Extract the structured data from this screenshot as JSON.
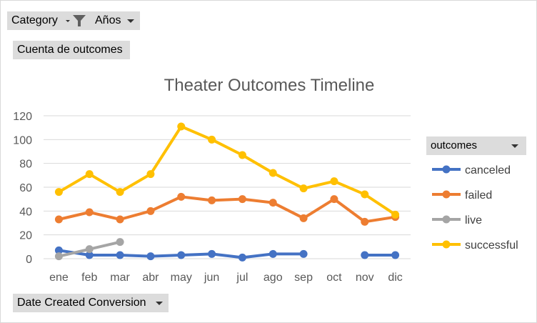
{
  "filters": {
    "category_label": "Category",
    "years_label": "Años",
    "values_label": "Cuenta de outcomes",
    "axis_field_label": "Date Created Conversion",
    "legend_field_label": "outcomes"
  },
  "icons": {
    "filter": "funnel-filter-icon",
    "dropdown": "chevron-down-icon"
  },
  "chart_data": {
    "type": "line",
    "title": "Theater Outcomes Timeline",
    "xlabel": "",
    "ylabel": "",
    "categories": [
      "ene",
      "feb",
      "mar",
      "abr",
      "may",
      "jun",
      "jul",
      "ago",
      "sep",
      "oct",
      "nov",
      "dic"
    ],
    "ylim": [
      0,
      120
    ],
    "yticks": [
      "0",
      "20",
      "40",
      "60",
      "80",
      "100",
      "120"
    ],
    "grid": true,
    "legend_position": "right",
    "series": [
      {
        "name": "canceled",
        "color": "#4472c4",
        "values": [
          7,
          3,
          3,
          2,
          3,
          4,
          1,
          4,
          4,
          null,
          3,
          3
        ]
      },
      {
        "name": "failed",
        "color": "#ed7d31",
        "values": [
          33,
          39,
          33,
          40,
          52,
          49,
          50,
          47,
          34,
          50,
          31,
          35
        ]
      },
      {
        "name": "live",
        "color": "#a5a5a5",
        "values": [
          2,
          8,
          14,
          null,
          null,
          null,
          null,
          null,
          null,
          null,
          null,
          null
        ]
      },
      {
        "name": "successful",
        "color": "#ffc000",
        "values": [
          56,
          71,
          56,
          71,
          111,
          100,
          87,
          72,
          59,
          65,
          54,
          37
        ]
      }
    ]
  }
}
